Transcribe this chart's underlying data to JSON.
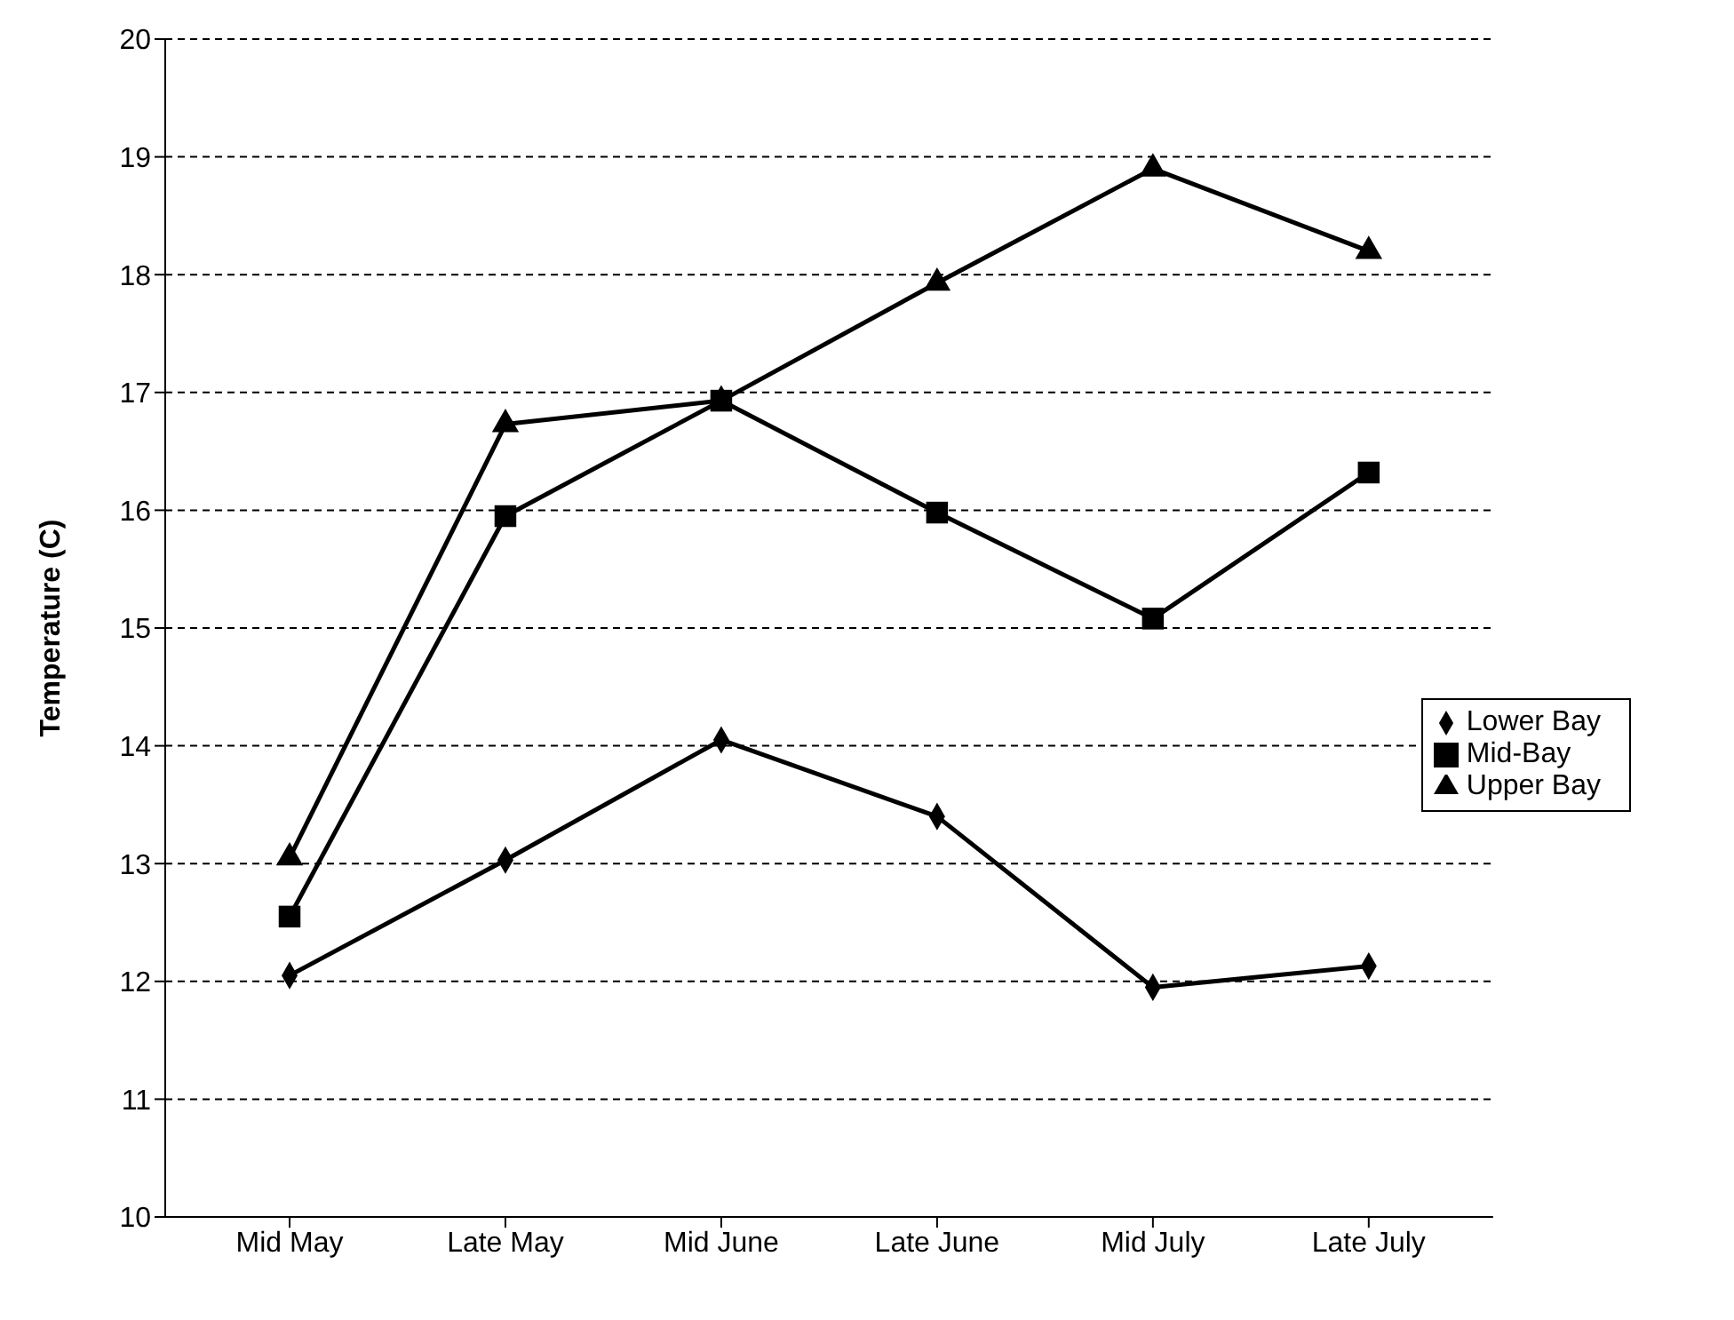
{
  "chart_data": {
    "type": "line",
    "ylabel": "Temperature (C)",
    "categories": [
      "Mid May",
      "Late May",
      "Mid June",
      "Late June",
      "Mid July",
      "Late July"
    ],
    "series": [
      {
        "name": "Lower Bay",
        "color": "#000000",
        "marker": "diamond",
        "values": [
          12.05,
          13.03,
          14.05,
          13.4,
          11.95,
          12.13
        ]
      },
      {
        "name": "Mid-Bay",
        "color": "#000000",
        "marker": "square",
        "values": [
          12.55,
          15.95,
          16.93,
          15.98,
          15.08,
          16.32
        ]
      },
      {
        "name": "Upper Bay",
        "color": "#000000",
        "marker": "triangle",
        "values": [
          13.05,
          16.73,
          16.93,
          17.93,
          18.9,
          18.2
        ]
      }
    ],
    "ylim": [
      10,
      20
    ],
    "yticks": [
      10,
      11,
      12,
      13,
      14,
      15,
      16,
      17,
      18,
      19,
      20
    ],
    "grid": "y",
    "legend": "right",
    "line_style": "solid"
  }
}
